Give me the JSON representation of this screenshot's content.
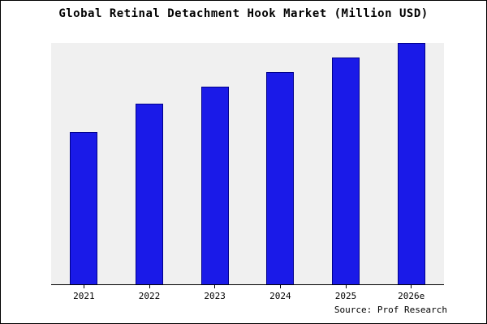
{
  "title": "Global Retinal Detachment Hook Market (Million USD)",
  "source": "Source: Prof Research",
  "colors": {
    "bar_fill": "#1a1ae8",
    "bar_edge": "#00008b",
    "plot_bg": "#f0f0f0",
    "frame_border": "#000000"
  },
  "chart_data": {
    "type": "bar",
    "title": "Global Retinal Detachment Hook Market (Million USD)",
    "categories": [
      "2021",
      "2022",
      "2023",
      "2024",
      "2025",
      "2026e"
    ],
    "values": [
      63,
      75,
      82,
      88,
      94,
      100
    ],
    "xlabel": "",
    "ylabel": "",
    "ylim": [
      0,
      100
    ],
    "grid": false,
    "legend": false,
    "y_axis_labels_visible": false,
    "annotation": "Source: Prof Research"
  }
}
